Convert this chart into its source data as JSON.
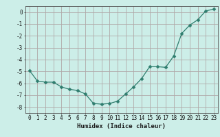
{
  "xlabel": "Humidex (Indice chaleur)",
  "ylabel": "",
  "x": [
    0,
    1,
    2,
    3,
    4,
    5,
    6,
    7,
    8,
    9,
    10,
    11,
    12,
    13,
    14,
    15,
    16,
    17,
    18,
    19,
    20,
    21,
    22,
    23
  ],
  "y": [
    -4.9,
    -5.8,
    -5.9,
    -5.9,
    -6.3,
    -6.5,
    -6.6,
    -6.9,
    -7.7,
    -7.75,
    -7.7,
    -7.5,
    -6.9,
    -6.3,
    -5.6,
    -4.6,
    -4.6,
    -4.65,
    -3.7,
    -1.8,
    -1.1,
    -0.65,
    0.1,
    0.25
  ],
  "line_color": "#2e7d6e",
  "marker": "D",
  "marker_size": 2.5,
  "bg_color": "#cceee8",
  "grid_color": "#b0a8a8",
  "tick_color": "#1a1a1a",
  "xlim": [
    -0.5,
    23.5
  ],
  "ylim": [
    -8.5,
    0.5
  ],
  "yticks": [
    0,
    -1,
    -2,
    -3,
    -4,
    -5,
    -6,
    -7,
    -8
  ],
  "xticks": [
    0,
    1,
    2,
    3,
    4,
    5,
    6,
    7,
    8,
    9,
    10,
    11,
    12,
    13,
    14,
    15,
    16,
    17,
    18,
    19,
    20,
    21,
    22,
    23
  ],
  "fontsize_label": 6.5,
  "fontsize_tick": 5.5
}
